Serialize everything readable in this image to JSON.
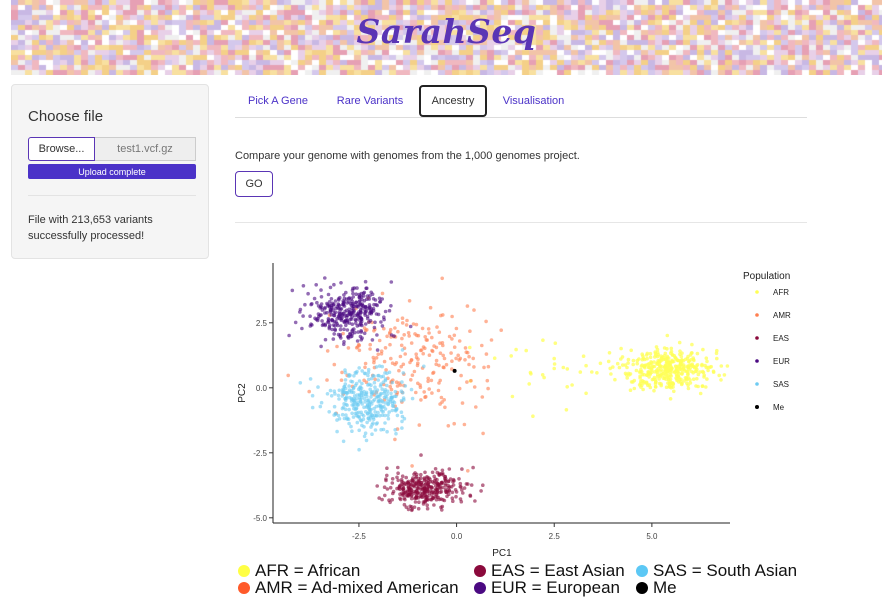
{
  "header": {
    "title": "SarahSeq"
  },
  "sidebar": {
    "label": "Choose file",
    "browse_label": "Browse...",
    "file_name": "test1.vcf.gz",
    "progress_label": "Upload complete",
    "progress": 1.0,
    "status_line1": "File with 213,653 variants",
    "status_line2": "successfully processed!"
  },
  "tabs": [
    {
      "label": "Pick A Gene",
      "active": false
    },
    {
      "label": "Rare Variants",
      "active": false
    },
    {
      "label": "Ancestry",
      "active": true
    },
    {
      "label": "Visualisation",
      "active": false
    }
  ],
  "main": {
    "compare_text": "Compare your genome with genomes from the 1,000 genomes project.",
    "go_label": "GO"
  },
  "chart_data": {
    "type": "scatter",
    "xlabel": "PC1",
    "ylabel": "PC2",
    "xlim": [
      -4.7,
      7.0
    ],
    "ylim": [
      -5.2,
      4.8
    ],
    "xticks": [
      -2.5,
      0.0,
      2.5,
      5.0
    ],
    "yticks": [
      2.5,
      0.0,
      -2.5,
      -5.0
    ],
    "xtick_labels": [
      "-2.5",
      "0.0",
      "2.5",
      "5.0"
    ],
    "ytick_labels": [
      "2.5",
      "0.0",
      "-2.5",
      "-5.0"
    ],
    "grid": false,
    "legend": {
      "title": "Population",
      "placement": "right"
    },
    "series": [
      {
        "name": "AFR",
        "color": "#ffff55",
        "center": [
          5.5,
          0.7
        ],
        "spread": [
          0.55,
          0.45
        ],
        "n": 420
      },
      {
        "name": "AMR",
        "color": "#ff7f50",
        "center": [
          -1.2,
          1.0
        ],
        "spread": [
          0.95,
          1.1
        ],
        "n": 230
      },
      {
        "name": "EAS",
        "color": "#8b0a3c",
        "center": [
          -0.8,
          -3.9
        ],
        "spread": [
          0.5,
          0.35
        ],
        "n": 330
      },
      {
        "name": "EUR",
        "color": "#4b0a82",
        "center": [
          -2.8,
          2.9
        ],
        "spread": [
          0.5,
          0.5
        ],
        "n": 330
      },
      {
        "name": "SAS",
        "color": "#6ecbf2",
        "center": [
          -2.3,
          -0.5
        ],
        "spread": [
          0.5,
          0.6
        ],
        "n": 330
      },
      {
        "name": "Me",
        "color": "#000000",
        "x": -0.05,
        "y": 0.65
      }
    ]
  },
  "pop_legend": [
    {
      "label": "AFR = African",
      "color": "#ffff44"
    },
    {
      "label": "AMR = Ad-mixed American",
      "color": "#ff5a2a"
    },
    {
      "label": "EAS = East Asian",
      "color": "#8b0a3c"
    },
    {
      "label": "EUR = European",
      "color": "#4b0a82"
    },
    {
      "label": "SAS = South Asian",
      "color": "#5cc8f5"
    },
    {
      "label": "Me",
      "color": "#000000"
    }
  ]
}
